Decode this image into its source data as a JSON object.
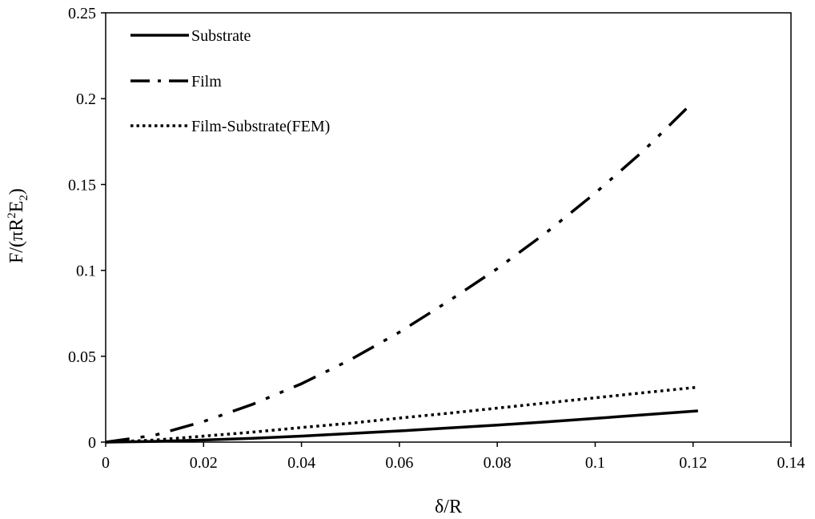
{
  "chart_data": {
    "type": "line",
    "title": "",
    "xlabel": "δ/R",
    "ylabel": {
      "base": "F/(πR",
      "sup": "2",
      "mid": "E",
      "sub": "2",
      "end": ")"
    },
    "xlim": [
      0,
      0.14
    ],
    "ylim": [
      0,
      0.25
    ],
    "xticks": [
      "0",
      "0.02",
      "0.04",
      "0.06",
      "0.08",
      "0.1",
      "0.12",
      "0.14"
    ],
    "yticks": [
      "0",
      "0.05",
      "0.1",
      "0.15",
      "0.2",
      "0.25"
    ],
    "legend_position": "top-left",
    "grid": false,
    "series": [
      {
        "name": "Substrate",
        "style": "solid",
        "color": "#000000",
        "points": [
          [
            0,
            0
          ],
          [
            0.01,
            0.0004
          ],
          [
            0.02,
            0.0012
          ],
          [
            0.03,
            0.0022
          ],
          [
            0.04,
            0.0035
          ],
          [
            0.05,
            0.005
          ],
          [
            0.06,
            0.0065
          ],
          [
            0.07,
            0.0082
          ],
          [
            0.08,
            0.0099
          ],
          [
            0.09,
            0.0118
          ],
          [
            0.1,
            0.0138
          ],
          [
            0.11,
            0.0159
          ],
          [
            0.121,
            0.0182
          ]
        ]
      },
      {
        "name": "Film",
        "style": "dashdotdot",
        "color": "#000000",
        "points": [
          [
            0,
            0
          ],
          [
            0.01,
            0.004
          ],
          [
            0.02,
            0.012
          ],
          [
            0.03,
            0.022
          ],
          [
            0.04,
            0.034
          ],
          [
            0.05,
            0.048
          ],
          [
            0.06,
            0.064
          ],
          [
            0.07,
            0.082
          ],
          [
            0.08,
            0.101
          ],
          [
            0.09,
            0.122
          ],
          [
            0.1,
            0.145
          ],
          [
            0.11,
            0.17
          ],
          [
            0.12,
            0.198
          ]
        ]
      },
      {
        "name": "Film-Substrate(FEM)",
        "style": "dotted",
        "color": "#000000",
        "points": [
          [
            0,
            0
          ],
          [
            0.01,
            0.0012
          ],
          [
            0.02,
            0.0035
          ],
          [
            0.03,
            0.0058
          ],
          [
            0.04,
            0.0085
          ],
          [
            0.05,
            0.011
          ],
          [
            0.06,
            0.014
          ],
          [
            0.07,
            0.0168
          ],
          [
            0.08,
            0.0198
          ],
          [
            0.09,
            0.0228
          ],
          [
            0.1,
            0.0258
          ],
          [
            0.11,
            0.0288
          ],
          [
            0.121,
            0.032
          ]
        ]
      }
    ]
  }
}
